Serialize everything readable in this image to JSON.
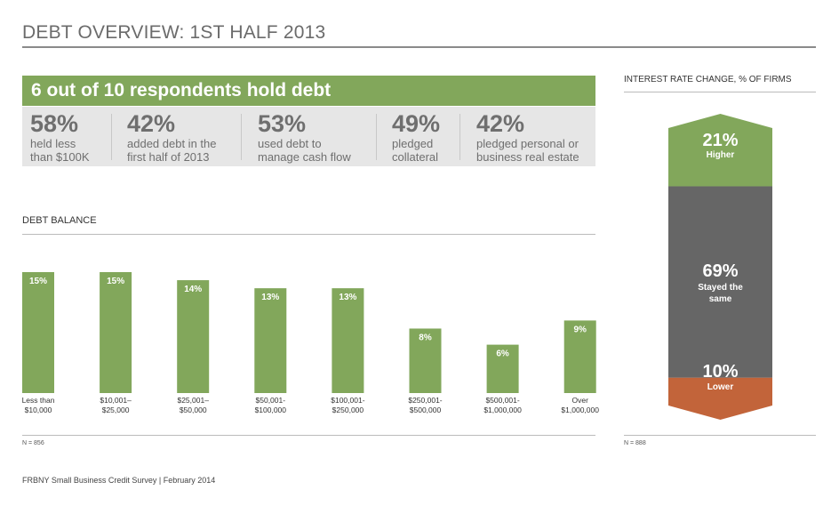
{
  "page": {
    "title": "DEBT OVERVIEW: 1ST HALF 2013",
    "footer": "FRBNY Small Business Credit Survey  |  February 2014"
  },
  "banner": {
    "headline": "6 out of 10 respondents hold debt",
    "stats": [
      {
        "pct": "58%",
        "line1": "held less",
        "line2": "than $100K"
      },
      {
        "pct": "42%",
        "line1": "added debt in the",
        "line2": "first half of 2013"
      },
      {
        "pct": "53%",
        "line1": "used debt to",
        "line2": "manage cash flow"
      },
      {
        "pct": "49%",
        "line1": "pledged",
        "line2": "collateral"
      },
      {
        "pct": "42%",
        "line1": "pledged personal or",
        "line2": "business real estate"
      }
    ]
  },
  "colors": {
    "green": "#82a75b",
    "gray": "#666666",
    "orange": "#c2643a",
    "stat_bg": "#e6e6e6"
  },
  "chart_data": [
    {
      "type": "bar",
      "title": "DEBT BALANCE",
      "categories": [
        [
          "Less than",
          "$10,000"
        ],
        [
          "$10,001–",
          "$25,000"
        ],
        [
          "$25,001–",
          "$50,000"
        ],
        [
          "$50,001-",
          "$100,000"
        ],
        [
          "$100,001-",
          "$250,000"
        ],
        [
          "$250,001-",
          "$500,000"
        ],
        [
          "$500,001-",
          "$1,000,000"
        ],
        [
          "Over",
          "$1,000,000"
        ]
      ],
      "values": [
        15,
        15,
        14,
        13,
        13,
        8,
        6,
        9
      ],
      "value_labels": [
        "15%",
        "15%",
        "14%",
        "13%",
        "13%",
        "8%",
        "6%",
        "9%"
      ],
      "ylim": [
        0,
        15
      ],
      "note": "N = 856"
    },
    {
      "type": "bar",
      "title": "INTEREST RATE CHANGE, % OF FIRMS",
      "segments": [
        {
          "label": "Higher",
          "value": 21,
          "value_label": "21%"
        },
        {
          "label": "Stayed the same",
          "value": 69,
          "value_label": "69%"
        },
        {
          "label": "Lower",
          "value": 10,
          "value_label": "10%"
        }
      ],
      "note": "N = 888"
    }
  ]
}
